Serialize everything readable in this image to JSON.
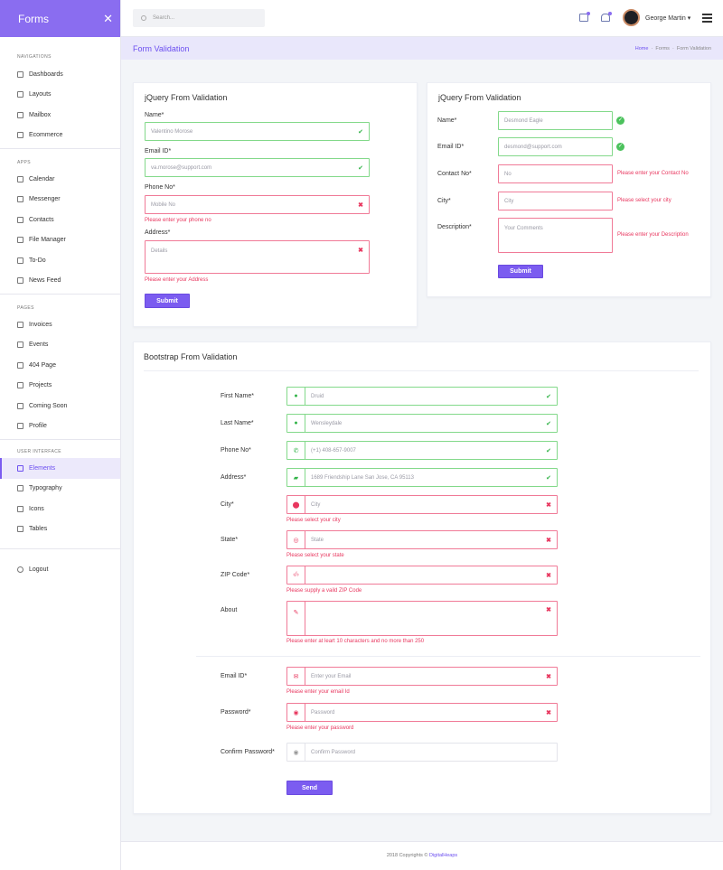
{
  "sidebar": {
    "brand": "Forms",
    "sections": [
      {
        "title": "NAVIGATIONS",
        "items": [
          "Dashboards",
          "Layouts",
          "Mailbox",
          "Ecommerce"
        ]
      },
      {
        "title": "APPS",
        "items": [
          "Calendar",
          "Messenger",
          "Contacts",
          "File Manager",
          "To-Do",
          "News Feed"
        ]
      },
      {
        "title": "PAGES",
        "items": [
          "Invoices",
          "Events",
          "404 Page",
          "Projects",
          "Coming Soon",
          "Profile"
        ]
      },
      {
        "title": "USER INTERFACE",
        "items": [
          "Elements",
          "Typography",
          "Icons",
          "Tables"
        ]
      }
    ],
    "active_item": "Elements",
    "logout": "Logout"
  },
  "topbar": {
    "search_placeholder": "Search...",
    "user_name": "George Martin"
  },
  "breadcrumb": {
    "title": "Form Validation",
    "home": "Home",
    "parent": "Forms",
    "current": "Form Validation"
  },
  "jquery_left": {
    "title": "jQuery From Validation",
    "name_label": "Name*",
    "name_value": "Valentino Morose",
    "email_label": "Email ID*",
    "email_value": "va.morose@support.com",
    "phone_label": "Phone No*",
    "phone_placeholder": "Mobile No",
    "phone_error": "Please enter your phone no",
    "address_label": "Address*",
    "address_placeholder": "Details",
    "address_error": "Please enter your Address",
    "submit": "Submit"
  },
  "jquery_right": {
    "title": "jQuery From Validation",
    "name_label": "Name*",
    "name_value": "Desmond Eagle",
    "email_label": "Email ID*",
    "email_value": "desmond@support.com",
    "contact_label": "Contact No*",
    "contact_placeholder": "No",
    "contact_error": "Please enter your Contact No",
    "city_label": "City*",
    "city_placeholder": "City",
    "city_error": "Please select your city",
    "desc_label": "Description*",
    "desc_placeholder": "Your Comments",
    "desc_error": "Please enter your Description",
    "submit": "Submit"
  },
  "bootstrap": {
    "title": "Bootstrap From Validation",
    "first_label": "First Name*",
    "first_value": "Druid",
    "last_label": "Last Name*",
    "last_value": "Wensleydale",
    "phone_label": "Phone No*",
    "phone_value": "(+1) 408-657-9007",
    "address_label": "Address*",
    "address_value": "1689 Friendship Lane San Jose, CA 95113",
    "city_label": "City*",
    "city_placeholder": "City",
    "city_error": "Please select your city",
    "state_label": "State*",
    "state_placeholder": "State",
    "state_error": "Please select your state",
    "zip_label": "ZIP Code*",
    "zip_error": "Please supply a vaild ZIP Code",
    "about_label": "About",
    "about_error": "Please enter at leart 10 characters and no more than 250",
    "email_label": "Email ID*",
    "email_placeholder": "Enter your Email",
    "email_error": "Please enter your email Id",
    "password_label": "Password*",
    "password_placeholder": "Password",
    "password_error": "Please enter your password",
    "confirm_label": "Confirm Password*",
    "confirm_placeholder": "Confirm Password",
    "send": "Send"
  },
  "footer": {
    "text": "2018 Copyrights ©",
    "brand": "DigitalHeaps"
  }
}
